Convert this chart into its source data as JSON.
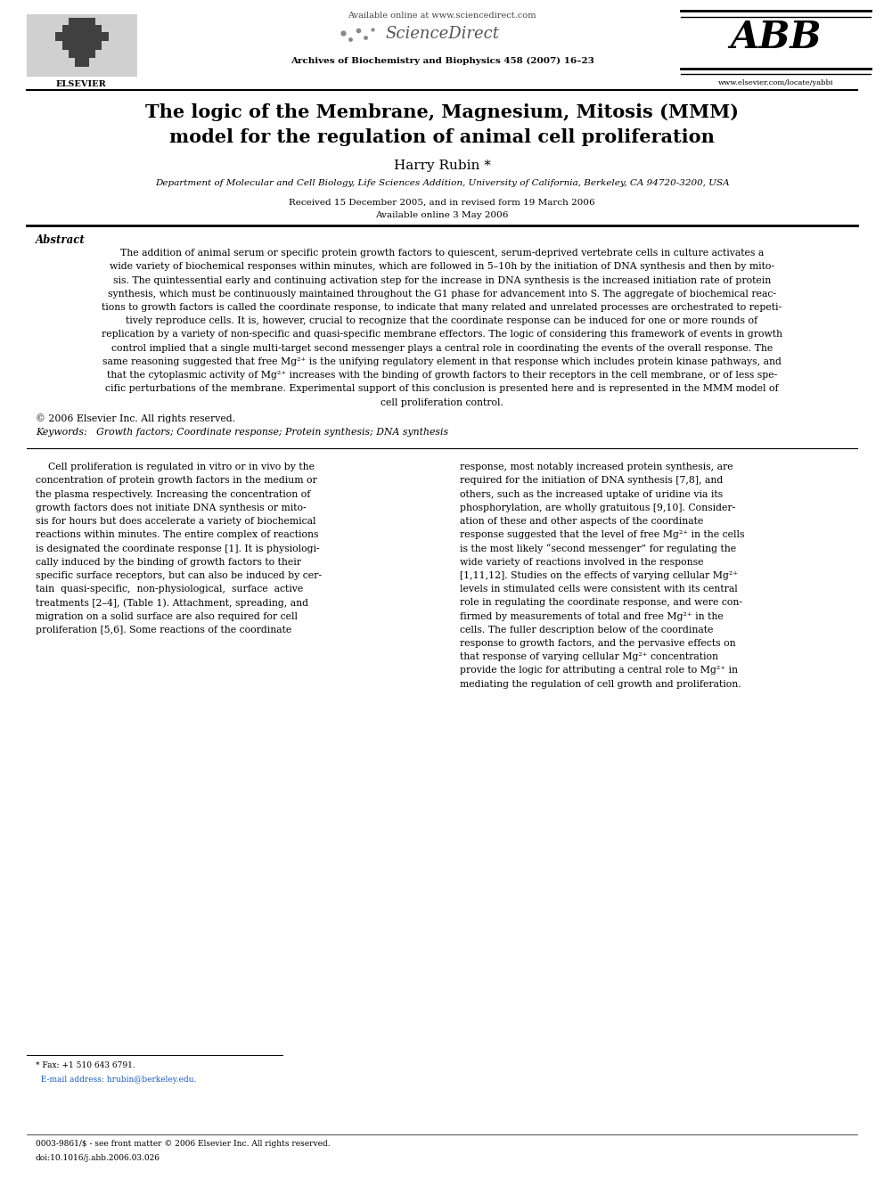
{
  "bg_color": "#ffffff",
  "page_width": 9.92,
  "page_height": 13.23,
  "header": {
    "available_online": "Available online at www.sciencedirect.com",
    "sciencedirect": "ScienceDirect",
    "journal": "Archives of Biochemistry and Biophysics 458 (2007) 16–23",
    "elsevier_url": "www.elsevier.com/locate/yabbi",
    "abb_text": "ABB"
  },
  "title": "The logic of the Membrane, Magnesium, Mitosis (MMM)\nmodel for the regulation of animal cell proliferation",
  "author": "Harry Rubin *",
  "affiliation": "Department of Molecular and Cell Biology, Life Sciences Addition, University of California, Berkeley, CA 94720-3200, USA",
  "received": "Received 15 December 2005, and in revised form 19 March 2006",
  "available": "Available online 3 May 2006",
  "abstract_title": "Abstract",
  "abstract_text_lines": [
    "The addition of animal serum or specific protein growth factors to quiescent, serum-deprived vertebrate cells in culture activates a",
    "wide variety of biochemical responses within minutes, which are followed in 5–10h by the initiation of DNA synthesis and then by mito-",
    "sis. The quintessential early and continuing activation step for the increase in DNA synthesis is the increased initiation rate of protein",
    "synthesis, which must be continuously maintained throughout the G1 phase for advancement into S. The aggregate of biochemical reac-",
    "tions to growth factors is called the coordinate response, to indicate that many related and unrelated processes are orchestrated to repeti-",
    "tively reproduce cells. It is, however, crucial to recognize that the coordinate response can be induced for one or more rounds of",
    "replication by a variety of non-specific and quasi-specific membrane effectors. The logic of considering this framework of events in growth",
    "control implied that a single multi-target second messenger plays a central role in coordinating the events of the overall response. The",
    "same reasoning suggested that free Mg²⁺ is the unifying regulatory element in that response which includes protein kinase pathways, and",
    "that the cytoplasmic activity of Mg²⁺ increases with the binding of growth factors to their receptors in the cell membrane, or of less spe-",
    "cific perturbations of the membrane. Experimental support of this conclusion is presented here and is represented in the MMM model of",
    "cell proliferation control."
  ],
  "copyright": "© 2006 Elsevier Inc. All rights reserved.",
  "keywords": "Keywords:   Growth factors; Coordinate response; Protein synthesis; DNA synthesis",
  "body_col1_lines": [
    "    Cell proliferation is regulated in vitro or in vivo by the",
    "concentration of protein growth factors in the medium or",
    "the plasma respectively. Increasing the concentration of",
    "growth factors does not initiate DNA synthesis or mito-",
    "sis for hours but does accelerate a variety of biochemical",
    "reactions within minutes. The entire complex of reactions",
    "is designated the coordinate response [1]. It is physiologi-",
    "cally induced by the binding of growth factors to their",
    "specific surface receptors, but can also be induced by cer-",
    "tain  quasi-specific,  non-physiological,  surface  active",
    "treatments [2–4], (Table 1). Attachment, spreading, and",
    "migration on a solid surface are also required for cell",
    "proliferation [5,6]. Some reactions of the coordinate"
  ],
  "body_col2_lines": [
    "response, most notably increased protein synthesis, are",
    "required for the initiation of DNA synthesis [7,8], and",
    "others, such as the increased uptake of uridine via its",
    "phosphorylation, are wholly gratuitous [9,10]. Consider-",
    "ation of these and other aspects of the coordinate",
    "response suggested that the level of free Mg²⁺ in the cells",
    "is the most likely “second messenger” for regulating the",
    "wide variety of reactions involved in the response",
    "[1,11,12]. Studies on the effects of varying cellular Mg²⁺",
    "levels in stimulated cells were consistent with its central",
    "role in regulating the coordinate response, and were con-",
    "firmed by measurements of total and free Mg²⁺ in the",
    "cells. The fuller description below of the coordinate",
    "response to growth factors, and the pervasive effects on",
    "that response of varying cellular Mg²⁺ concentration",
    "provide the logic for attributing a central role to Mg²⁺ in",
    "mediating the regulation of cell growth and proliferation."
  ],
  "footnote_line1": "* Fax: +1 510 643 6791.",
  "footnote_line2": "  E-mail address: hrubin@berkeley.edu.",
  "footer_line1": "0003-9861/$ - see front matter © 2006 Elsevier Inc. All rights reserved.",
  "footer_line2": "doi:10.1016/j.abb.2006.03.026"
}
